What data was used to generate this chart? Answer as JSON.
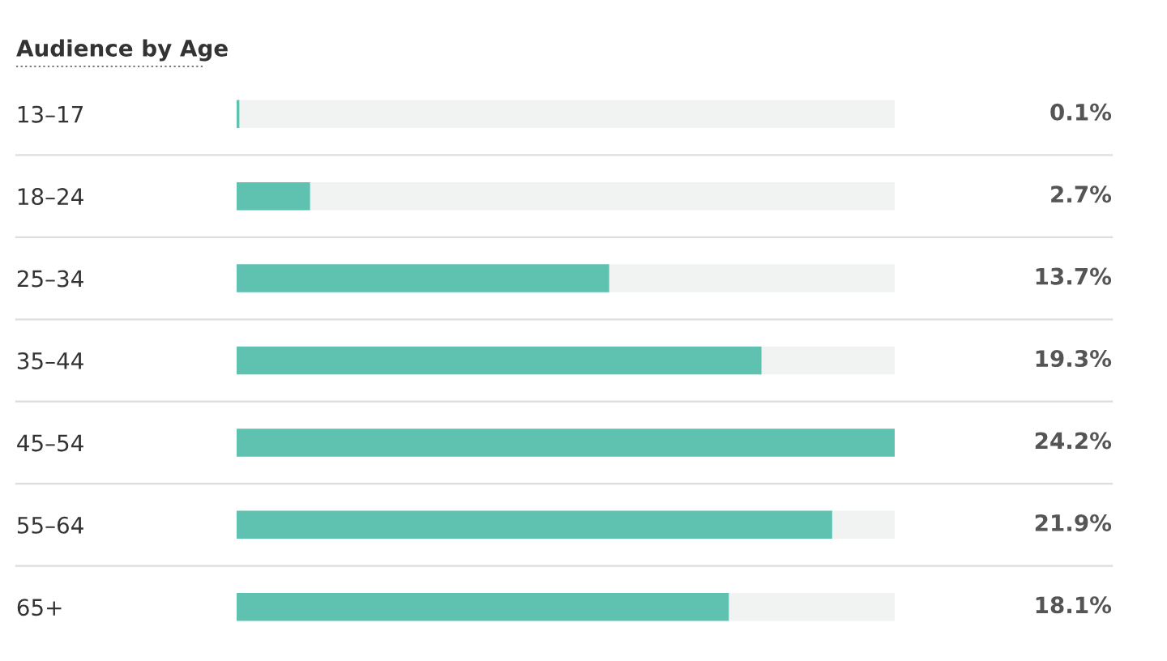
{
  "chart_data": {
    "type": "bar",
    "orientation": "horizontal",
    "title": "Audience by Age",
    "categories": [
      "13–17",
      "18–24",
      "25–34",
      "35–44",
      "45–54",
      "55–64",
      "65+"
    ],
    "values": [
      0.1,
      2.7,
      13.7,
      19.3,
      24.2,
      21.9,
      18.1
    ],
    "value_labels": [
      "0.1%",
      "2.7%",
      "13.7%",
      "19.3%",
      "24.2%",
      "21.9%",
      "18.1%"
    ],
    "color": "#5fc2b1",
    "xlim": [
      0,
      24.2
    ],
    "tick_labels": "y",
    "grid": false,
    "legend": false
  }
}
